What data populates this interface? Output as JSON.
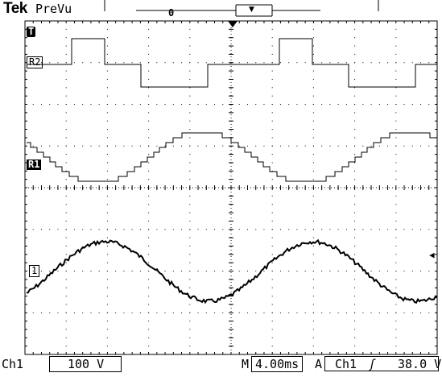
{
  "header": {
    "brand": "Tek",
    "mode": "PreVu",
    "trigger_position_label": "0",
    "trigger_point_symbol": "▼"
  },
  "markers": {
    "trigger_level": "T",
    "ref2": "R2",
    "ref1": "R1",
    "ch1": "1",
    "trigger_arrow": "◀"
  },
  "footer": {
    "channel": "Ch1",
    "volts_per_div": "100 V",
    "timebase_prefix": "M",
    "time_per_div": "4.00ms",
    "trigger_mode": "A",
    "trigger_source": "Ch1",
    "trigger_slope": "ʃ",
    "trigger_level": "38.0 V"
  },
  "colors": {
    "trace": "#000000",
    "background": "#ffffff",
    "graticule": "#000000"
  },
  "traces": {
    "ref2": {
      "name": "R2",
      "shape": "square wave"
    },
    "ref1": {
      "name": "R1",
      "shape": "stepped sine"
    },
    "ch1": {
      "name": "1",
      "shape": "noisy sine"
    }
  }
}
